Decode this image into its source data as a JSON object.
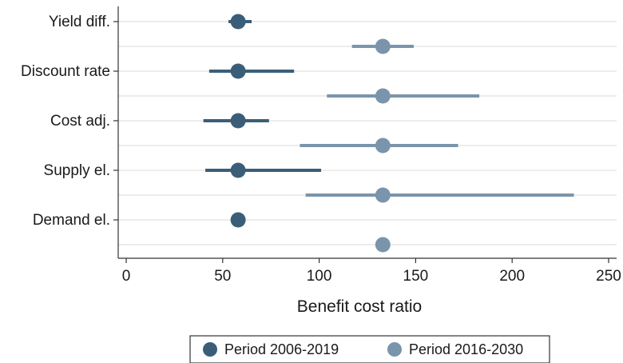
{
  "chart_data": {
    "type": "scatter",
    "subtype": "dot-and-whisker",
    "xlabel": "Benefit cost ratio",
    "xlim": [
      0,
      250
    ],
    "xticks": [
      0,
      50,
      100,
      150,
      200,
      250
    ],
    "xtick_labels": [
      "0",
      "50",
      "100",
      "150",
      "200",
      "250"
    ],
    "categories": [
      "Yield diff.",
      "Discount rate",
      "Cost adj.",
      "Supply el.",
      "Demand el."
    ],
    "grid": true,
    "legend_position": "bottom",
    "series": [
      {
        "name": "Period 2006-2019",
        "color": "#3b5e78",
        "points": [
          {
            "category": "Yield diff.",
            "x": 58,
            "low": 53,
            "high": 65
          },
          {
            "category": "Discount rate",
            "x": 58,
            "low": 43,
            "high": 87
          },
          {
            "category": "Cost adj.",
            "x": 58,
            "low": 40,
            "high": 74
          },
          {
            "category": "Supply el.",
            "x": 58,
            "low": 41,
            "high": 101
          },
          {
            "category": "Demand el.",
            "x": 58,
            "low": 58,
            "high": 58
          }
        ]
      },
      {
        "name": "Period 2016-2030",
        "color": "#7a95ab",
        "points": [
          {
            "category": "Yield diff.",
            "x": 133,
            "low": 117,
            "high": 149
          },
          {
            "category": "Discount rate",
            "x": 133,
            "low": 104,
            "high": 183
          },
          {
            "category": "Cost adj.",
            "x": 133,
            "low": 90,
            "high": 172
          },
          {
            "category": "Supply el.",
            "x": 133,
            "low": 93,
            "high": 232
          },
          {
            "category": "Demand el.",
            "x": 133,
            "low": 133,
            "high": 133
          }
        ]
      }
    ]
  }
}
